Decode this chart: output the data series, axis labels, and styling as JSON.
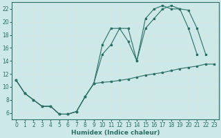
{
  "xlabel": "Humidex (Indice chaleur)",
  "bg_color": "#cce8e8",
  "grid_color": "#d4e8e0",
  "line_color": "#2a6e65",
  "xlim": [
    -0.5,
    23.5
  ],
  "ylim": [
    5.0,
    23.0
  ],
  "yticks": [
    6,
    8,
    10,
    12,
    14,
    16,
    18,
    20,
    22
  ],
  "xticks": [
    0,
    1,
    2,
    3,
    4,
    5,
    6,
    7,
    8,
    9,
    10,
    11,
    12,
    13,
    14,
    15,
    16,
    17,
    18,
    19,
    20,
    21,
    22,
    23
  ],
  "line1_x": [
    0,
    1,
    2,
    3,
    4,
    5,
    6,
    7,
    8,
    9,
    10,
    11,
    12,
    13,
    14,
    15,
    16,
    17,
    18,
    19,
    20,
    21,
    22,
    23
  ],
  "line1_y": [
    11.0,
    9.0,
    8.0,
    7.0,
    7.0,
    5.8,
    5.8,
    6.2,
    8.5,
    10.5,
    10.7,
    10.8,
    11.0,
    11.2,
    11.5,
    11.8,
    12.0,
    12.2,
    12.5,
    12.8,
    13.0,
    13.2,
    13.5,
    13.5
  ],
  "line2_x": [
    0,
    1,
    2,
    3,
    4,
    5,
    6,
    7,
    8,
    9,
    10,
    11,
    12,
    13,
    14,
    15,
    16,
    17,
    18,
    19,
    20,
    21,
    22,
    23
  ],
  "line2_y": [
    11.0,
    9.0,
    8.0,
    7.0,
    7.0,
    5.8,
    5.8,
    6.2,
    8.5,
    10.5,
    15.0,
    16.5,
    19.0,
    17.0,
    14.0,
    19.0,
    20.5,
    22.0,
    22.5,
    22.0,
    21.8,
    19.0,
    15.0,
    null
  ],
  "line3_x": [
    0,
    1,
    2,
    3,
    4,
    5,
    6,
    7,
    8,
    9,
    10,
    11,
    12,
    13,
    14,
    15,
    16,
    17,
    18,
    19,
    20,
    21,
    22,
    23
  ],
  "line3_y": [
    11.0,
    9.0,
    8.0,
    7.0,
    7.0,
    5.8,
    5.8,
    6.2,
    8.5,
    10.5,
    16.5,
    19.0,
    19.0,
    19.0,
    14.0,
    20.5,
    22.0,
    22.5,
    22.0,
    22.0,
    19.0,
    15.0,
    null,
    null
  ],
  "marker_size": 2.0,
  "linewidth": 0.8,
  "tick_fontsize": 5.5,
  "xlabel_fontsize": 6.5
}
